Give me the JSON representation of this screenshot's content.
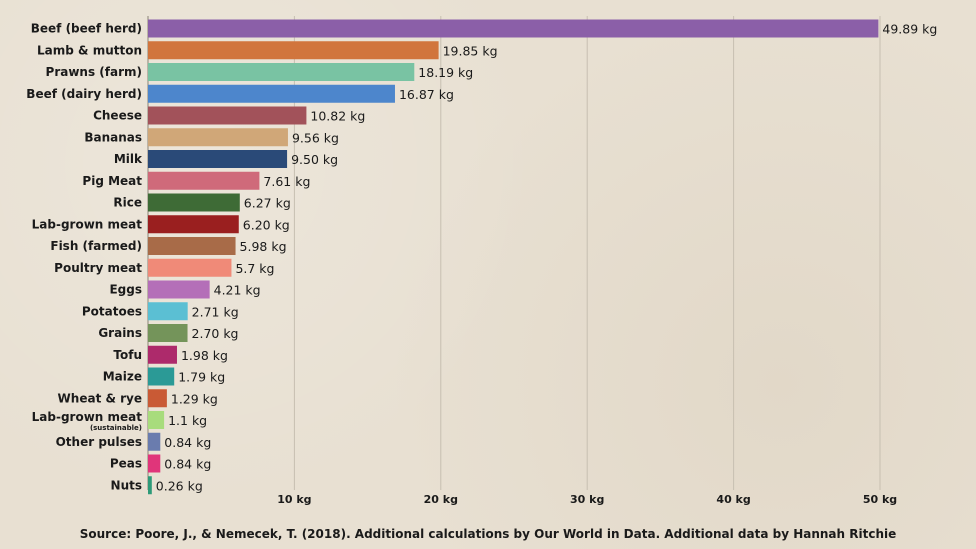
{
  "chart_data": {
    "type": "bar",
    "orientation": "horizontal",
    "categories": [
      {
        "label": "Beef (beef herd)",
        "sub": "",
        "value": 49.89,
        "value_label": "49.89 kg",
        "color": "#8b5fa8"
      },
      {
        "label": "Lamb & mutton",
        "sub": "",
        "value": 19.85,
        "value_label": "19.85 kg",
        "color": "#d1753d"
      },
      {
        "label": "Prawns (farm)",
        "sub": "",
        "value": 18.19,
        "value_label": "18.19 kg",
        "color": "#79c3a3"
      },
      {
        "label": "Beef (dairy herd)",
        "sub": "",
        "value": 16.87,
        "value_label": "16.87 kg",
        "color": "#4d86cc"
      },
      {
        "label": "Cheese",
        "sub": "",
        "value": 10.82,
        "value_label": "10.82 kg",
        "color": "#a2525a"
      },
      {
        "label": "Bananas",
        "sub": "",
        "value": 9.56,
        "value_label": "9.56 kg",
        "color": "#d0a778"
      },
      {
        "label": "Milk",
        "sub": "",
        "value": 9.5,
        "value_label": "9.50 kg",
        "color": "#2a4a78"
      },
      {
        "label": "Pig Meat",
        "sub": "",
        "value": 7.61,
        "value_label": "7.61 kg",
        "color": "#cf6a7a"
      },
      {
        "label": "Rice",
        "sub": "",
        "value": 6.27,
        "value_label": "6.27 kg",
        "color": "#3e6b36"
      },
      {
        "label": "Lab-grown meat",
        "sub": "",
        "value": 6.2,
        "value_label": "6.20 kg",
        "color": "#9a1f1f"
      },
      {
        "label": "Fish (farmed)",
        "sub": "",
        "value": 5.98,
        "value_label": "5.98 kg",
        "color": "#a86b48"
      },
      {
        "label": "Poultry meat",
        "sub": "",
        "value": 5.7,
        "value_label": "5.7 kg",
        "color": "#f08a78"
      },
      {
        "label": "Eggs",
        "sub": "",
        "value": 4.21,
        "value_label": "4.21 kg",
        "color": "#b46fb8"
      },
      {
        "label": "Potatoes",
        "sub": "",
        "value": 2.71,
        "value_label": "2.71 kg",
        "color": "#5bbfd3"
      },
      {
        "label": "Grains",
        "sub": "",
        "value": 2.7,
        "value_label": "2.70 kg",
        "color": "#74945a"
      },
      {
        "label": "Tofu",
        "sub": "",
        "value": 1.98,
        "value_label": "1.98 kg",
        "color": "#ad2a6b"
      },
      {
        "label": "Maize",
        "sub": "",
        "value": 1.79,
        "value_label": "1.79 kg",
        "color": "#2b9a96"
      },
      {
        "label": "Wheat & rye",
        "sub": "",
        "value": 1.29,
        "value_label": "1.29 kg",
        "color": "#c95a35"
      },
      {
        "label": "Lab-grown meat",
        "sub": "(sustainable)",
        "value": 1.1,
        "value_label": "1.1 kg",
        "color": "#a8dc7c"
      },
      {
        "label": "Other pulses",
        "sub": "",
        "value": 0.84,
        "value_label": "0.84 kg",
        "color": "#6a7cae"
      },
      {
        "label": "Peas",
        "sub": "",
        "value": 0.84,
        "value_label": "0.84 kg",
        "color": "#e0357a"
      },
      {
        "label": "Nuts",
        "sub": "",
        "value": 0.26,
        "value_label": "0.26 kg",
        "color": "#2d9a78"
      }
    ],
    "xlim": [
      0,
      50
    ],
    "x_ticks": [
      10,
      20,
      30,
      40,
      50
    ],
    "x_tick_labels": [
      "10 kg",
      "20 kg",
      "30 kg",
      "40 kg",
      "50 kg"
    ],
    "grid": "vertical",
    "colors": {
      "background": "#e8e0d2",
      "grid": "#c7bfb1",
      "text": "#1a1a1a"
    }
  },
  "source_text": "Source: Poore, J., & Nemecek, T. (2018). Additional calculations by Our World in Data. Additional data by Hannah Ritchie"
}
